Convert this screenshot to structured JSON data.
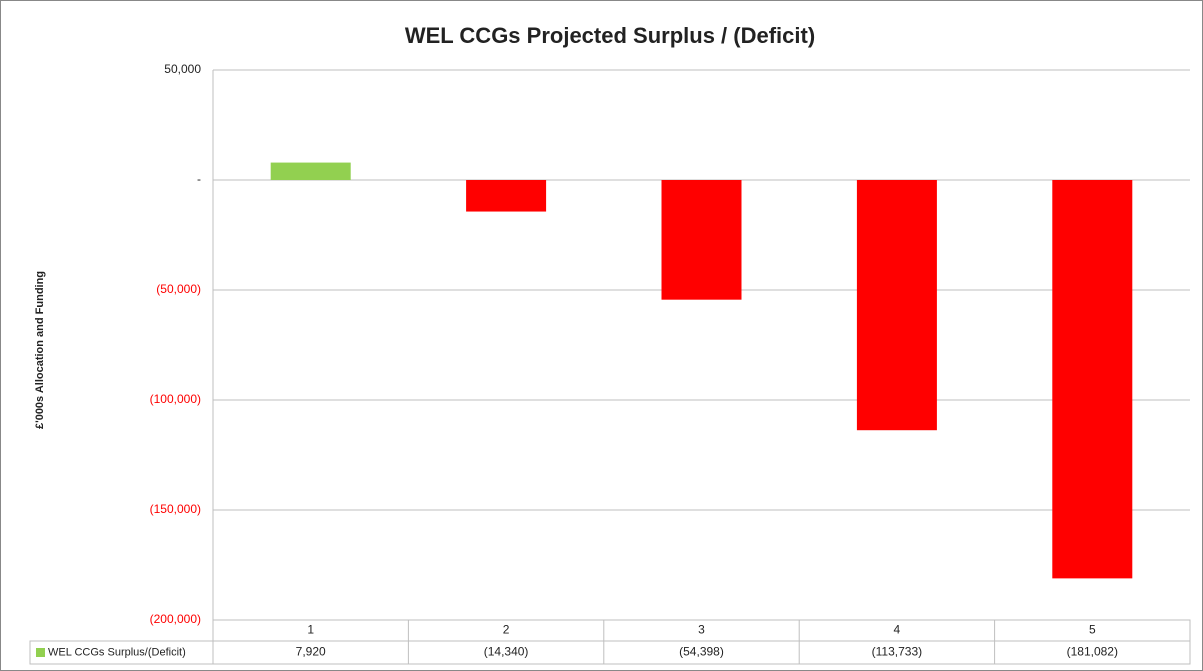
{
  "chart_data": {
    "type": "bar",
    "title": "WEL CCGs Projected Surplus / (Deficit)",
    "y_label": "£'000s Allocation and Funding",
    "categories": [
      "1",
      "2",
      "3",
      "4",
      "5"
    ],
    "series": [
      {
        "name": "WEL CCGs Surplus/(Deficit)",
        "color": "#92d050",
        "negative_color": "#ff0000",
        "values": [
          7920,
          -14340,
          -54398,
          -113733,
          -181082
        ],
        "value_labels": [
          "7,920",
          "(14,340)",
          "(54,398)",
          "(113,733)",
          "(181,082)"
        ]
      }
    ],
    "ylim": [
      -200000,
      50000
    ],
    "yticks": [
      {
        "value": 50000,
        "label": "50,000"
      },
      {
        "value": 0,
        "label": "-"
      },
      {
        "value": -50000,
        "label": "(50,000)"
      },
      {
        "value": -100000,
        "label": "(100,000)"
      },
      {
        "value": -150000,
        "label": "(150,000)"
      },
      {
        "value": -200000,
        "label": "(200,000)"
      }
    ],
    "negative_tick_color": "#ff0000",
    "grid": true
  }
}
